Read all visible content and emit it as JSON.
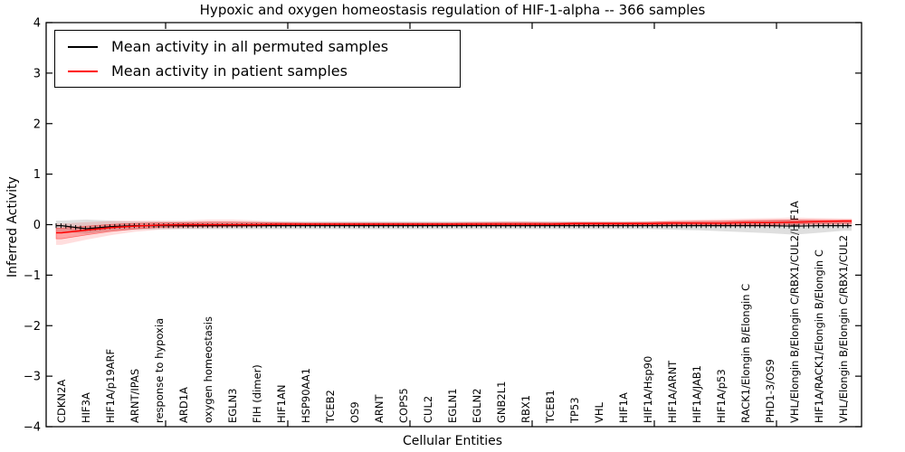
{
  "title": "Hypoxic and oxygen homeostasis regulation of HIF-1-alpha -- 366 samples",
  "axes": {
    "xlabel": "Cellular Entities",
    "ylabel": "Inferred Activity",
    "y_ticks": [
      4,
      3,
      2,
      1,
      0,
      -1,
      -2,
      -3,
      -4
    ],
    "ylim": [
      -4,
      4
    ]
  },
  "legend": {
    "entries": [
      {
        "label": "Mean activity in all permuted samples",
        "color": "#000000"
      },
      {
        "label": "Mean activity in patient samples",
        "color": "#ff0000"
      }
    ],
    "position": "upper-left"
  },
  "chart_data": {
    "type": "line",
    "title": "Hypoxic and oxygen homeostasis regulation of HIF-1-alpha -- 366 samples",
    "xlabel": "Cellular Entities",
    "ylabel": "Inferred Activity",
    "ylim": [
      -4,
      4
    ],
    "grid": false,
    "x_major_ticks": [
      5,
      10,
      15,
      20,
      25,
      30
    ],
    "categories": [
      "CDKN2A",
      "HIF3A",
      "HIF1A/p19ARF",
      "ARNT/IPAS",
      "response to hypoxia",
      "ARD1A",
      "oxygen homeostasis",
      "EGLN3",
      "FIH (dimer)",
      "HIF1AN",
      "HSP90AA1",
      "TCEB2",
      "OS9",
      "ARNT",
      "COPS5",
      "CUL2",
      "EGLN1",
      "EGLN2",
      "GNB2L1",
      "RBX1",
      "TCEB1",
      "TP53",
      "VHL",
      "HIF1A",
      "HIF1A/Hsp90",
      "HIF1A/ARNT",
      "HIF1A/JAB1",
      "HIF1A/p53",
      "RACK1/Elongin B/Elongin C",
      "PHD1-3/OS9",
      "VHL/Elongin B/Elongin C/RBX1/CUL2/HIF1A",
      "HIF1A/RACK1/Elongin B/Elongin C",
      "VHL/Elongin B/Elongin C/RBX1/CUL2"
    ],
    "series": [
      {
        "name": "Mean activity in all permuted samples",
        "color": "#000000",
        "band_color": "#aaaaaa",
        "values": [
          -0.02,
          -0.08,
          -0.04,
          -0.02,
          -0.02,
          -0.02,
          -0.02,
          -0.02,
          -0.02,
          -0.02,
          -0.02,
          -0.02,
          -0.02,
          -0.02,
          -0.02,
          -0.02,
          -0.02,
          -0.02,
          -0.02,
          -0.02,
          -0.02,
          -0.02,
          -0.02,
          -0.02,
          -0.02,
          -0.02,
          -0.02,
          -0.02,
          -0.02,
          -0.02,
          -0.03,
          -0.02,
          -0.02
        ],
        "band_upper": [
          0.08,
          0.1,
          0.08,
          0.06,
          0.06,
          0.06,
          0.06,
          0.06,
          0.06,
          0.06,
          0.06,
          0.06,
          0.06,
          0.06,
          0.06,
          0.06,
          0.06,
          0.06,
          0.06,
          0.06,
          0.06,
          0.06,
          0.06,
          0.06,
          0.06,
          0.06,
          0.07,
          0.07,
          0.08,
          0.09,
          0.1,
          0.08,
          0.07
        ],
        "band_lower": [
          -0.14,
          -0.18,
          -0.13,
          -0.1,
          -0.09,
          -0.09,
          -0.09,
          -0.09,
          -0.09,
          -0.09,
          -0.09,
          -0.09,
          -0.09,
          -0.09,
          -0.09,
          -0.09,
          -0.09,
          -0.09,
          -0.09,
          -0.09,
          -0.09,
          -0.09,
          -0.09,
          -0.09,
          -0.09,
          -0.1,
          -0.11,
          -0.13,
          -0.15,
          -0.17,
          -0.2,
          -0.16,
          -0.12
        ]
      },
      {
        "name": "Mean activity in patient samples",
        "color": "#ff0000",
        "band_color": "#ff0000",
        "values": [
          -0.16,
          -0.11,
          -0.06,
          -0.03,
          -0.01,
          0.0,
          0.0,
          0.0,
          0.0,
          0.01,
          0.01,
          0.01,
          0.01,
          0.01,
          0.01,
          0.01,
          0.01,
          0.01,
          0.01,
          0.01,
          0.01,
          0.02,
          0.02,
          0.02,
          0.02,
          0.03,
          0.03,
          0.03,
          0.04,
          0.04,
          0.05,
          0.06,
          0.07
        ],
        "band_upper": [
          0.02,
          0.05,
          0.07,
          0.08,
          0.08,
          0.08,
          0.1,
          0.1,
          0.08,
          0.06,
          0.05,
          0.05,
          0.05,
          0.05,
          0.05,
          0.05,
          0.05,
          0.06,
          0.07,
          0.07,
          0.06,
          0.06,
          0.06,
          0.06,
          0.07,
          0.09,
          0.1,
          0.11,
          0.12,
          0.13,
          0.14,
          0.13,
          0.12
        ],
        "band_lower": [
          -0.4,
          -0.3,
          -0.21,
          -0.14,
          -0.1,
          -0.08,
          -0.07,
          -0.06,
          -0.05,
          -0.04,
          -0.03,
          -0.03,
          -0.03,
          -0.03,
          -0.03,
          -0.03,
          -0.03,
          -0.03,
          -0.04,
          -0.04,
          -0.03,
          -0.03,
          -0.03,
          -0.03,
          -0.03,
          -0.03,
          -0.03,
          -0.04,
          -0.04,
          -0.04,
          -0.03,
          -0.02,
          -0.02
        ]
      }
    ]
  }
}
